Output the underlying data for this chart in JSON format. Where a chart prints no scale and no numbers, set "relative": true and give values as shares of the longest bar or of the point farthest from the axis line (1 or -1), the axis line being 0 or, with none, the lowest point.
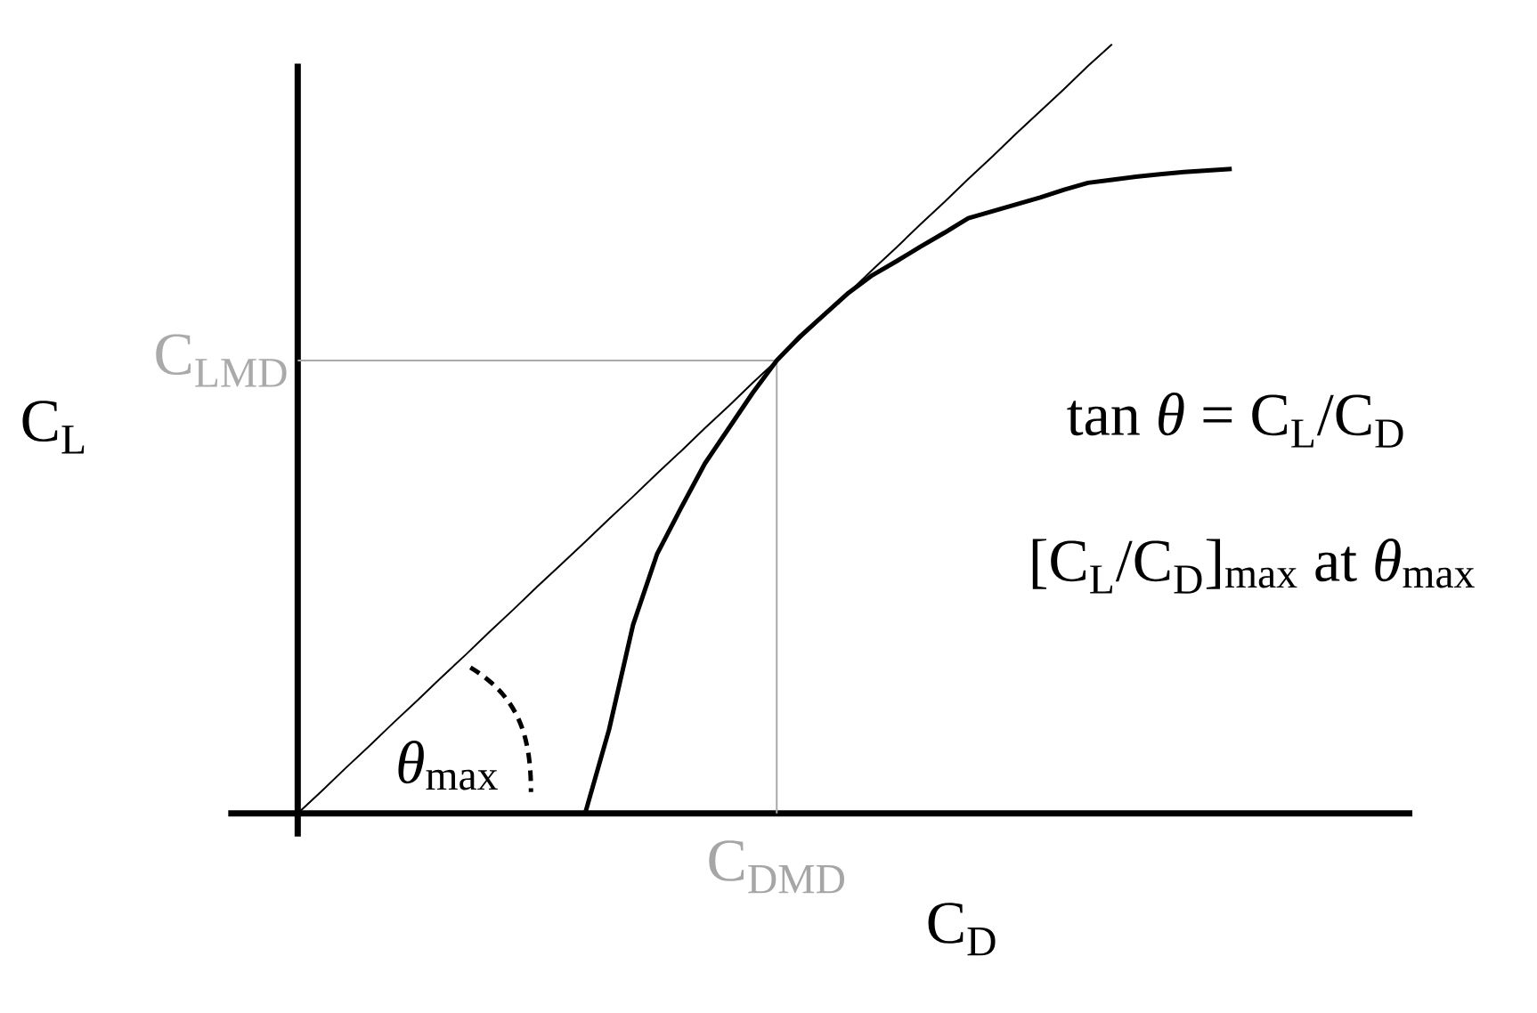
{
  "chart_data": {
    "type": "line",
    "relative": true,
    "xlabel": "C$_{D}$",
    "ylabel": "C$_{L}$",
    "categories": [
      null,
      null,
      null,
      null,
      null,
      null,
      null,
      null,
      null,
      null,
      null,
      null,
      null,
      null,
      null,
      null,
      null,
      null,
      null,
      null,
      null,
      null,
      null,
      null,
      null,
      null,
      null,
      null,
      null,
      null,
      null,
      null,
      null,
      null,
      null,
      null,
      null,
      null,
      null,
      null
    ],
    "series": [
      {
        "color": "#000000",
        "values": [
          null,
          null,
          null,
          null,
          null,
          null,
          null,
          null,
          null,
          null,
          null,
          null,
          0,
          0.109,
          0.245,
          0.337,
          0.397,
          0.455,
          0.501,
          0.547,
          0.589,
          0.621,
          0.649,
          0.677,
          0.7,
          0.718,
          0.737,
          0.755,
          0.774,
          0.783,
          0.792,
          0.801,
          0.811,
          0.82,
          0.824,
          0.828,
          0.831,
          0.834,
          0.836,
          0.838
        ]
      },
      {
        "color": "#000000",
        "values": [
          0,
          0.029,
          0.059,
          0.088,
          0.118,
          0.147,
          0.177,
          0.206,
          0.236,
          0.265,
          0.295,
          0.324,
          0.353,
          0.383,
          0.412,
          0.442,
          0.471,
          0.501,
          0.53,
          0.56,
          0.589,
          0.618,
          0.648,
          0.677,
          0.707,
          0.736,
          0.766,
          0.795,
          0.825,
          0.854,
          0.884,
          0.913,
          0.942,
          0.972,
          1.0,
          null,
          null,
          null,
          null,
          null
        ]
      }
    ],
    "ref_lines": [
      {
        "axis": "y",
        "value": 0.589,
        "label": "C$_{LMD}$",
        "color": "#aaaaaa"
      }
    ],
    "annotations": [
      "tan *θ* = C$_{L}$/C$_{D}$",
      "[C$_{L}$/C$_{D}$]$_{max}$ at *θ*$_{max}$",
      "*θ*$_{max}$",
      "C$_{DMD}$"
    ]
  }
}
